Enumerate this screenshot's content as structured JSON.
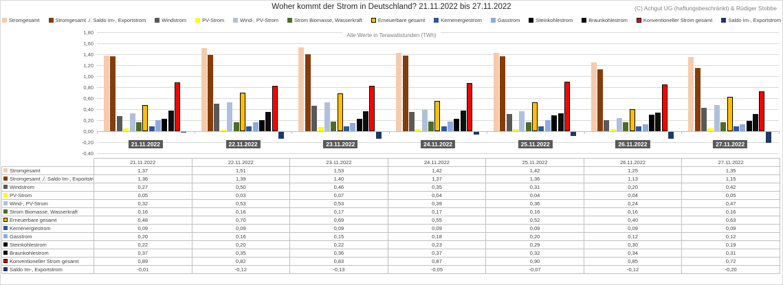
{
  "title": "Woher kommt der Strom in Deutschland? 21.11.2022 bis 27.11.2022",
  "copyright": "(C) Achgut UG (haftungsbeschränkt) & Rüdiger Stobbe",
  "chart_data": {
    "type": "bar",
    "subtitle": "Alle Werte in Terawattstunden (TWh)",
    "categories": [
      "21.11.2022",
      "22.11.2022",
      "23.11.2022",
      "24.11.2022",
      "25.11.2022",
      "26.11.2022",
      "27.11.2022"
    ],
    "ylim": [
      -0.4,
      1.8
    ],
    "ytick_step": 0.2,
    "grid": "horizontal",
    "legend_position": "top",
    "number_format": "de-comma",
    "gridline_color": "#D9D9D9",
    "axis_line_color": "#BFBFBF",
    "axis_label_color": "#595959",
    "category_label_bg": "#595959",
    "category_label_color": "#FFFFFF",
    "series": [
      {
        "name": "Stromgesamt",
        "color": "#F5CBAD",
        "values": [
          1.37,
          1.51,
          1.53,
          1.42,
          1.42,
          1.25,
          1.35
        ]
      },
      {
        "name": "Stromgesamt ./. Saldo Im-, Exportstrom",
        "color": "#843C0C",
        "values": [
          1.36,
          1.39,
          1.4,
          1.37,
          1.36,
          1.13,
          1.15
        ]
      },
      {
        "name": "Windstrom",
        "color": "#595959",
        "values": [
          0.27,
          0.5,
          0.46,
          0.35,
          0.31,
          0.2,
          0.42
        ]
      },
      {
        "name": "PV-Strom",
        "color": "#FFFF00",
        "values": [
          0.05,
          0.03,
          0.07,
          0.04,
          0.04,
          0.04,
          0.05
        ]
      },
      {
        "name": "Wind-, PV-Strom",
        "color": "#AFC0DC",
        "values": [
          0.32,
          0.53,
          0.53,
          0.39,
          0.36,
          0.24,
          0.47
        ]
      },
      {
        "name": "Strom Biomasse, Wasserkraft",
        "color": "#4E6B2A",
        "values": [
          0.16,
          0.16,
          0.17,
          0.17,
          0.16,
          0.16,
          0.16
        ]
      },
      {
        "name": "Erneuerbare gesamt",
        "color": "#FFC000",
        "border": "#000000",
        "values": [
          0.48,
          0.7,
          0.69,
          0.55,
          0.52,
          0.4,
          0.63
        ]
      },
      {
        "name": "Kernenergiestrom",
        "color": "#2F5597",
        "values": [
          0.09,
          0.09,
          0.09,
          0.09,
          0.09,
          0.09,
          0.09
        ]
      },
      {
        "name": "Gasstrom",
        "color": "#8FAADC",
        "values": [
          0.2,
          0.16,
          0.15,
          0.18,
          0.2,
          0.12,
          0.12
        ]
      },
      {
        "name": "Steinkohlestrom",
        "color": "#000000",
        "values": [
          0.22,
          0.2,
          0.22,
          0.23,
          0.29,
          0.3,
          0.19
        ]
      },
      {
        "name": "Braunkohlestrom",
        "color": "#0D0D0D",
        "values": [
          0.37,
          0.35,
          0.36,
          0.37,
          0.32,
          0.34,
          0.31
        ]
      },
      {
        "name": "Konventioneller Strom gesamt",
        "color": "#FF0000",
        "border": "#000000",
        "values": [
          0.89,
          0.82,
          0.83,
          0.87,
          0.9,
          0.85,
          0.72
        ]
      },
      {
        "name": "Saldo Im-, Exportstrom",
        "color": "#1F3864",
        "values": [
          -0.01,
          -0.12,
          -0.13,
          -0.05,
          -0.07,
          -0.12,
          -0.2
        ]
      }
    ]
  }
}
